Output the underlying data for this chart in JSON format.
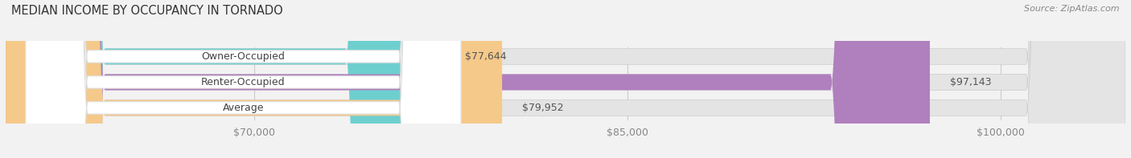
{
  "title": "MEDIAN INCOME BY OCCUPANCY IN TORNADO",
  "source": "Source: ZipAtlas.com",
  "categories": [
    "Owner-Occupied",
    "Renter-Occupied",
    "Average"
  ],
  "values": [
    77644,
    97143,
    79952
  ],
  "labels": [
    "$77,644",
    "$97,143",
    "$79,952"
  ],
  "bar_colors": [
    "#6ecfcf",
    "#b07fbe",
    "#f5c98a"
  ],
  "background_color": "#f2f2f2",
  "bar_bg_color": "#e4e4e4",
  "xmin": 60000,
  "xmax": 105000,
  "xticks": [
    70000,
    85000,
    100000
  ],
  "xtick_labels": [
    "$70,000",
    "$85,000",
    "$100,000"
  ],
  "title_fontsize": 10.5,
  "source_fontsize": 8,
  "label_fontsize": 9,
  "value_fontsize": 9,
  "bar_height": 0.62,
  "fig_width": 14.06,
  "fig_height": 1.97
}
